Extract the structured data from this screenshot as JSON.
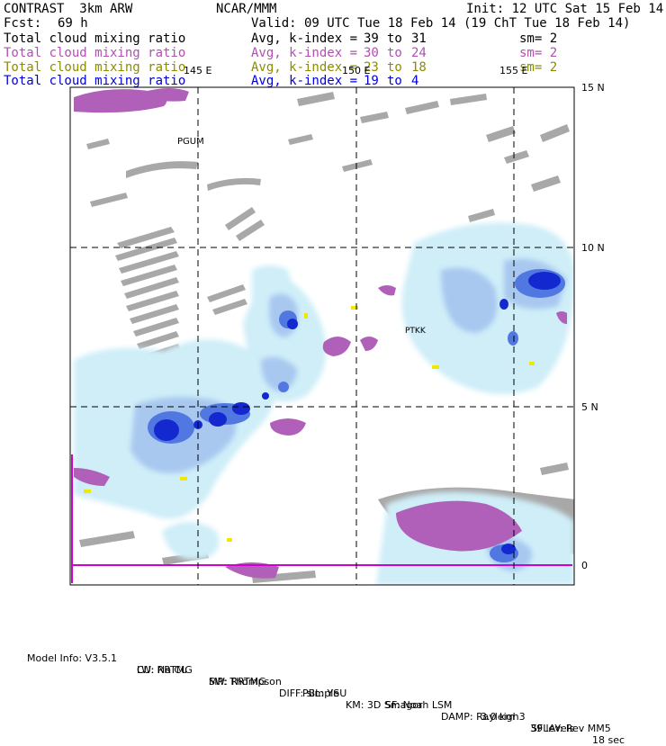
{
  "header": {
    "model": "CONTRAST  3km ARW",
    "org": "NCAR/MMM",
    "init": "Init: 12 UTC Sat 15 Feb 14",
    "fcst_label": "Fcst:",
    "fcst_value": "69 h",
    "valid": "Valid: 09 UTC Tue 18 Feb 14 (19 ChT Tue 18 Feb 14)"
  },
  "fields": [
    {
      "name": "Total cloud mixing ratio",
      "avg": "Avg, k-index =",
      "from": "39",
      "to_word": "to",
      "to": "31",
      "sm": "sm= 2",
      "color": "#000000"
    },
    {
      "name": "Total cloud mixing ratio",
      "avg": "Avg, k-index =",
      "from": "30",
      "to_word": "to",
      "to": "24",
      "sm": "sm= 2",
      "color": "#b050b0"
    },
    {
      "name": "Total cloud mixing ratio",
      "avg": "Avg, k-index =",
      "from": "23",
      "to_word": "to",
      "to": "18",
      "sm": "sm= 2",
      "color": "#8c8c00"
    },
    {
      "name": "Total cloud mixing ratio",
      "avg": "Avg, k-index =",
      "from": "19",
      "to_word": "to",
      "to": "4",
      "sm": "",
      "color": "#0000dd"
    }
  ],
  "map": {
    "lon_labels": [
      "145 E",
      "150 E",
      "155 E"
    ],
    "lat_labels": [
      "15 N",
      "10 N",
      "5 N",
      "0"
    ],
    "stations": [
      "PGUM",
      "PTKK"
    ],
    "colors": {
      "gray": "#a8a8a8",
      "magenta": "#b060b8",
      "yellow": "#f0e800",
      "light_blue": "#cfeef8",
      "mid_blue": "#a8c8f0",
      "blue": "#5078e0",
      "dark_blue": "#1428d0",
      "border_magenta": "#d000d0"
    }
  },
  "footer": {
    "line1": [
      "Model Info: V3.5.1",
      "CU: No Cu",
      "MP: Thompson",
      "PBL: YSU",
      "SF: Noah LSM",
      "3.0 km",
      "39 levels",
      "18 sec"
    ],
    "line2": [
      "LW: RRTMG",
      "SW: RRTMG",
      "DIFF: simple",
      "KM: 3D Smagor",
      "DAMP: Rayleigh3",
      "SFLAY: Rev MM5"
    ]
  }
}
